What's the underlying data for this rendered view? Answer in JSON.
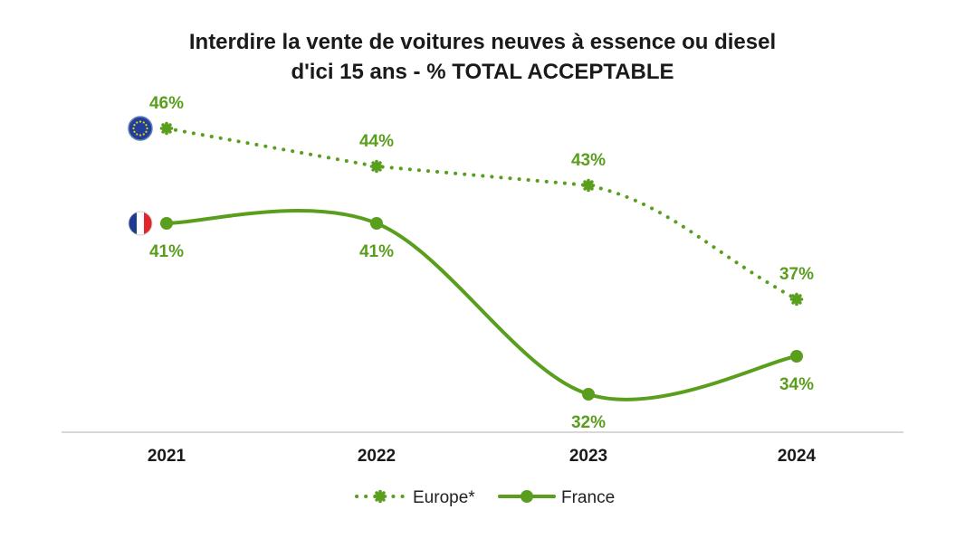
{
  "chart_data": {
    "type": "line",
    "title_lines": [
      "Interdire la vente de voitures neuves à essence ou diesel",
      "d'ici 15 ans - % TOTAL ACCEPTABLE"
    ],
    "categories": [
      "2021",
      "2022",
      "2023",
      "2024"
    ],
    "series": [
      {
        "name": "Europe*",
        "values": [
          46,
          44,
          43,
          37
        ],
        "labels": [
          "46%",
          "44%",
          "43%",
          "37%"
        ],
        "style": "dotted",
        "color": "#5a9e1e",
        "flag_icon": "eu-flag-icon"
      },
      {
        "name": "France",
        "values": [
          41,
          41,
          32,
          34
        ],
        "labels": [
          "41%",
          "41%",
          "32%",
          "34%"
        ],
        "style": "solid",
        "color": "#5a9e1e",
        "flag_icon": "france-flag-icon"
      }
    ],
    "xlabel": "",
    "ylabel": "",
    "ylim": [
      28,
      48
    ],
    "grid": false,
    "legend_position": "bottom-center",
    "label_color": "#5a9e1e"
  }
}
